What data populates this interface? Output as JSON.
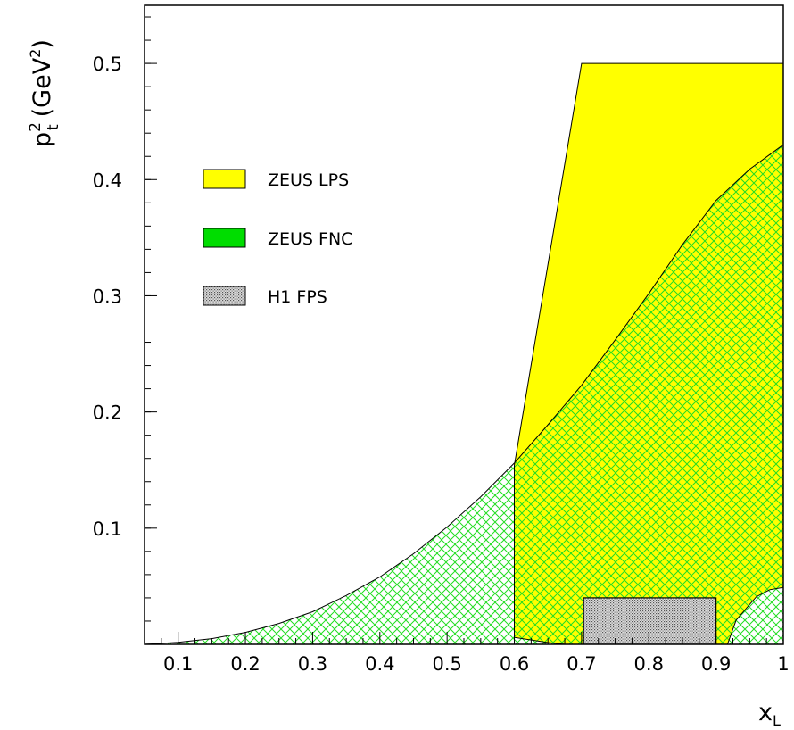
{
  "chart_data": {
    "type": "area",
    "title": "",
    "xlabel": "x",
    "xlabel_sub": "L",
    "ylabel_p": "p",
    "ylabel_sup": "2",
    "ylabel_sub": "t",
    "ylabel_unit_open": "(GeV",
    "ylabel_unit_sup": "2",
    "ylabel_unit_close": ")",
    "xlim": [
      0.05,
      1.0
    ],
    "ylim": [
      0.0,
      0.55
    ],
    "x_ticks": [
      {
        "value": 0.1,
        "label": "0.1"
      },
      {
        "value": 0.2,
        "label": "0.2"
      },
      {
        "value": 0.3,
        "label": "0.3"
      },
      {
        "value": 0.4,
        "label": "0.4"
      },
      {
        "value": 0.5,
        "label": "0.5"
      },
      {
        "value": 0.6,
        "label": "0.6"
      },
      {
        "value": 0.7,
        "label": "0.7"
      },
      {
        "value": 0.8,
        "label": "0.8"
      },
      {
        "value": 0.9,
        "label": "0.9"
      },
      {
        "value": 1.0,
        "label": "1"
      }
    ],
    "y_ticks": [
      {
        "value": 0.1,
        "label": "0.1"
      },
      {
        "value": 0.2,
        "label": "0.2"
      },
      {
        "value": 0.3,
        "label": "0.3"
      },
      {
        "value": 0.4,
        "label": "0.4"
      },
      {
        "value": 0.5,
        "label": "0.5"
      }
    ],
    "legend_position": "upper-left",
    "series": [
      {
        "name": "ZEUS LPS",
        "color": "#ffff00",
        "fill": "solid",
        "points": [
          [
            0.6,
            0.154
          ],
          [
            0.7,
            0.5
          ],
          [
            1.0,
            0.5
          ],
          [
            1.0,
            0.0
          ],
          [
            0.675,
            0.0
          ],
          [
            0.65,
            0.0015
          ],
          [
            0.6,
            0.006
          ]
        ]
      },
      {
        "name": "ZEUS FNC",
        "color": "#00dd00",
        "fill": "cross-hatch",
        "curve_points": [
          [
            0.05,
            0.0
          ],
          [
            0.1,
            0.0017
          ],
          [
            0.15,
            0.0049
          ],
          [
            0.2,
            0.0103
          ],
          [
            0.25,
            0.018
          ],
          [
            0.3,
            0.028
          ],
          [
            0.35,
            0.042
          ],
          [
            0.4,
            0.058
          ],
          [
            0.45,
            0.078
          ],
          [
            0.5,
            0.101
          ],
          [
            0.55,
            0.127
          ],
          [
            0.6,
            0.156
          ],
          [
            0.65,
            0.189
          ],
          [
            0.7,
            0.223
          ],
          [
            0.75,
            0.262
          ],
          [
            0.8,
            0.302
          ],
          [
            0.85,
            0.344
          ],
          [
            0.9,
            0.382
          ],
          [
            0.95,
            0.409
          ],
          [
            1.0,
            0.43
          ]
        ],
        "corner_region": [
          [
            0.917,
            0.0
          ],
          [
            0.93,
            0.021
          ],
          [
            0.96,
            0.041
          ],
          [
            0.98,
            0.047
          ],
          [
            1.0,
            0.049
          ],
          [
            1.0,
            0.0
          ]
        ]
      },
      {
        "name": "H1 FPS",
        "color": "#888888",
        "fill": "dotted",
        "rect": {
          "x0": 0.703,
          "x1": 0.9,
          "y0": 0.0,
          "y1": 0.04
        }
      }
    ]
  }
}
